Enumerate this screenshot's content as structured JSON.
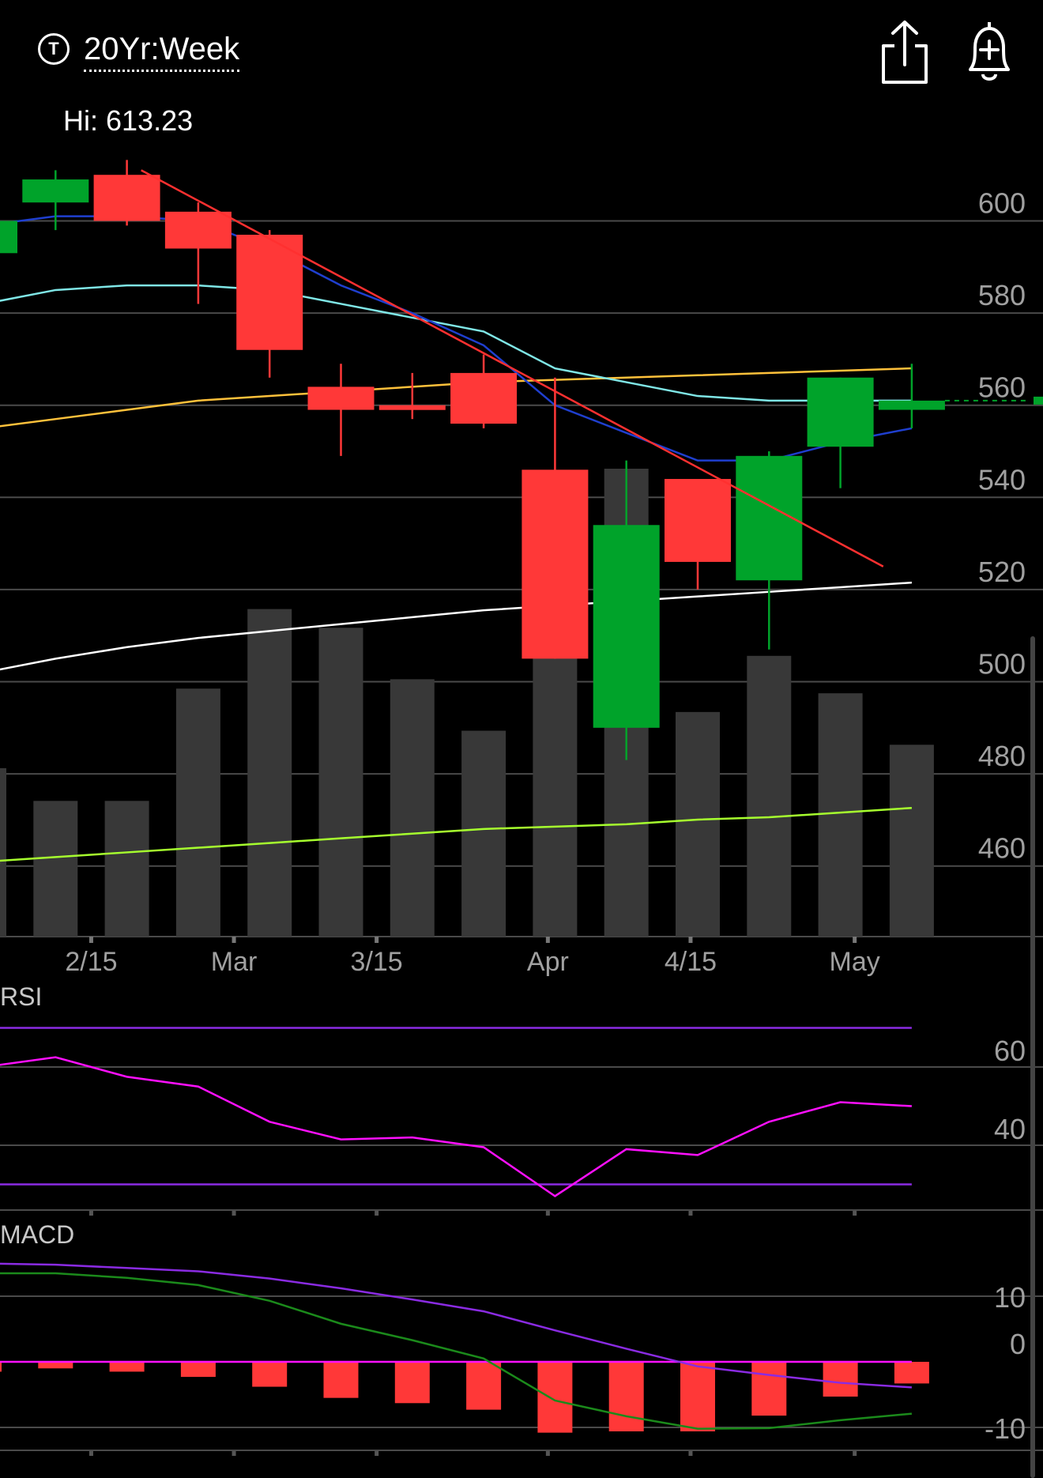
{
  "header": {
    "ticker_icon": "T",
    "range": "20Yr:Week",
    "share_icon": "share-icon",
    "alert_icon": "bell-plus-icon",
    "hi_label": "Hi: 613.23"
  },
  "colors": {
    "up": "#00a32a",
    "down": "#ff3838",
    "volume": "#383838",
    "grid": "#4a4a4a",
    "ma_fast": "#1f3fcf",
    "ma_mid": "#7fe6e6",
    "ma_slow": "#ffc13b",
    "ma_long": "#ffffff",
    "volume_ma": "#a6ff2e",
    "trendline": "#ff3030",
    "rsi_line": "#ff10ff",
    "rsi_bands": "#8a2be2",
    "macd_line": "#1b8a1b",
    "macd_signal": "#8a2be2",
    "macd_zero": "#ff10ff"
  },
  "chart_data": [
    {
      "type": "candlestick",
      "ylim": [
        440,
        620
      ],
      "yticks": [
        460,
        480,
        500,
        520,
        540,
        560,
        580,
        600
      ],
      "xtick_labels": [
        {
          "label": "2/15",
          "week": 1.5
        },
        {
          "label": "Mar",
          "week": 3.5
        },
        {
          "label": "3/15",
          "week": 5.5
        },
        {
          "label": "Apr",
          "week": 7.9
        },
        {
          "label": "4/15",
          "week": 9.9
        },
        {
          "label": "May",
          "week": 12.2
        }
      ],
      "candles": [
        {
          "o": 593,
          "h": 600,
          "l": 592,
          "c": 600
        },
        {
          "o": 604,
          "h": 611,
          "l": 598,
          "c": 609
        },
        {
          "o": 610,
          "h": 613.23,
          "l": 599,
          "c": 600
        },
        {
          "o": 602,
          "h": 604,
          "l": 582,
          "c": 594
        },
        {
          "o": 597,
          "h": 598,
          "l": 566,
          "c": 572
        },
        {
          "o": 564,
          "h": 569,
          "l": 549,
          "c": 559
        },
        {
          "o": 560,
          "h": 567,
          "l": 557,
          "c": 559
        },
        {
          "o": 567,
          "h": 571,
          "l": 555,
          "c": 556
        },
        {
          "o": 546,
          "h": 566,
          "l": 505,
          "c": 505
        },
        {
          "o": 490,
          "h": 548,
          "l": 483,
          "c": 534
        },
        {
          "o": 544,
          "h": 544,
          "l": 520,
          "c": 526
        },
        {
          "o": 522,
          "h": 550,
          "l": 507,
          "c": 549
        },
        {
          "o": 551,
          "h": 566,
          "l": 542,
          "c": 566
        },
        {
          "o": 559,
          "h": 569,
          "l": 555,
          "c": 561
        }
      ],
      "volume": [
        0.36,
        0.29,
        0.29,
        0.53,
        0.7,
        0.66,
        0.55,
        0.44,
        0.91,
        1.0,
        0.48,
        0.6,
        0.52,
        0.41
      ],
      "ma_fast": [
        599,
        601,
        601,
        600,
        594,
        586,
        580,
        573,
        560,
        554,
        548,
        548,
        552,
        555
      ],
      "ma_mid": [
        582,
        585,
        586,
        586,
        585,
        582,
        579,
        576,
        568,
        565,
        562,
        561,
        561,
        561
      ],
      "ma_slow": [
        555,
        557,
        559,
        561,
        562,
        563,
        564,
        565,
        565.5,
        566,
        566.5,
        567,
        567.5,
        568
      ],
      "ma_long": [
        502,
        505,
        507.5,
        509.5,
        511,
        512.5,
        514,
        515.5,
        516.5,
        517.5,
        518.5,
        519.5,
        520.5,
        521.5
      ],
      "volume_ma": [
        0.16,
        0.17,
        0.18,
        0.19,
        0.2,
        0.21,
        0.22,
        0.23,
        0.235,
        0.24,
        0.25,
        0.255,
        0.265,
        0.275
      ],
      "trendline": {
        "x": [
          2.2,
          12.6
        ],
        "y": [
          611,
          525
        ]
      },
      "last_price": 561
    },
    {
      "type": "line",
      "title": "RSI",
      "ylim": [
        20,
        80
      ],
      "yticks": [
        40,
        60
      ],
      "bands": [
        30,
        70
      ],
      "series": [
        {
          "values": [
            60,
            62.5,
            57.5,
            55,
            46,
            41.5,
            42,
            39.5,
            27,
            39,
            37.5,
            46,
            51,
            50
          ]
        }
      ]
    },
    {
      "type": "line",
      "title": "MACD",
      "ylim": [
        -13,
        17
      ],
      "yticks": [
        10,
        0,
        -10
      ],
      "histogram": [
        -1.5,
        -1,
        -1.5,
        -2.3,
        -3.8,
        -5.5,
        -6.3,
        -7.3,
        -10.8,
        -10.6,
        -10.6,
        -8.2,
        -5.3,
        -3.3
      ],
      "series": [
        {
          "values": [
            13.5,
            13.5,
            12.8,
            11.7,
            9.3,
            5.8,
            3.3,
            0.5,
            -5.9,
            -8.3,
            -10.2,
            -10.1,
            -8.9,
            -7.9
          ]
        },
        {
          "values": [
            15.0,
            14.8,
            14.3,
            13.8,
            12.7,
            11.2,
            9.5,
            7.7,
            4.8,
            2.0,
            -0.7,
            -2.0,
            -3.2,
            -3.9
          ]
        }
      ]
    }
  ]
}
